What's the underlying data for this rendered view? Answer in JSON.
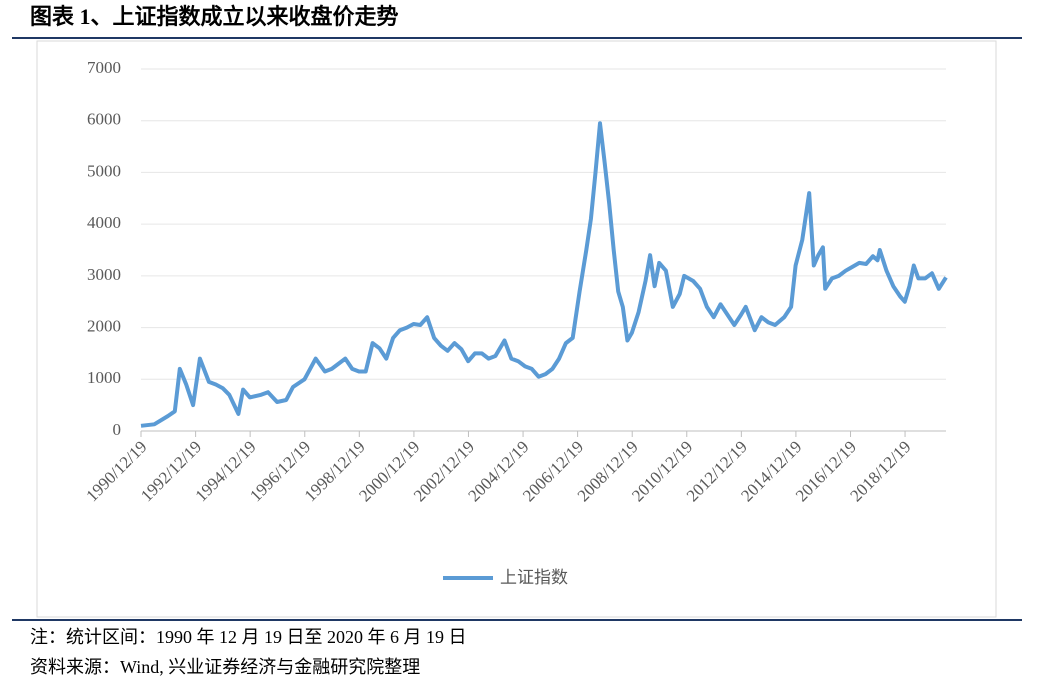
{
  "chart_data": {
    "type": "line",
    "title": "图表 1、上证指数成立以来收盘价走势",
    "notes": [
      "注：统计区间：1990 年 12 月 19 日至 2020 年 6 月 19 日",
      "资料来源：Wind, 兴业证券经济与金融研究院整理"
    ],
    "x": [
      "1990/12/19",
      "1991/06",
      "1991/12",
      "1992/03",
      "1992/05/21",
      "1992/08",
      "1992/11",
      "1993/02",
      "1993/06",
      "1993/09",
      "1993/12",
      "1994/03",
      "1994/07",
      "1994/09",
      "1994/12",
      "1995/05",
      "1995/08",
      "1995/12",
      "1996/04",
      "1996/07",
      "1996/12",
      "1997/05",
      "1997/09",
      "1997/12",
      "1998/06",
      "1998/09",
      "1998/12",
      "1999/03",
      "1999/06",
      "1999/09",
      "1999/12",
      "2000/03",
      "2000/06",
      "2000/09",
      "2000/12",
      "2001/03",
      "2001/06",
      "2001/09",
      "2001/12",
      "2002/03",
      "2002/06",
      "2002/09",
      "2002/12",
      "2003/03",
      "2003/06",
      "2003/09",
      "2003/12",
      "2004/04",
      "2004/07",
      "2004/10",
      "2005/01",
      "2005/04",
      "2005/07",
      "2005/10",
      "2006/01",
      "2006/04",
      "2006/07",
      "2006/10",
      "2007/01",
      "2007/04",
      "2007/06",
      "2007/08",
      "2007/10",
      "2007/12",
      "2008/02",
      "2008/04",
      "2008/06",
      "2008/08",
      "2008/10",
      "2008/12",
      "2009/03",
      "2009/06",
      "2009/08",
      "2009/10",
      "2009/12",
      "2010/03",
      "2010/06",
      "2010/09",
      "2010/11",
      "2011/03",
      "2011/06",
      "2011/09",
      "2011/12",
      "2012/03",
      "2012/06",
      "2012/09",
      "2012/12",
      "2013/02",
      "2013/06",
      "2013/09",
      "2013/12",
      "2014/03",
      "2014/07",
      "2014/10",
      "2014/12",
      "2015/03",
      "2015/06",
      "2015/08",
      "2015/10",
      "2015/12",
      "2016/01",
      "2016/04",
      "2016/07",
      "2016/10",
      "2016/12",
      "2017/04",
      "2017/07",
      "2017/10",
      "2017/12",
      "2018/01",
      "2018/04",
      "2018/07",
      "2018/10",
      "2018/12",
      "2019/02",
      "2019/04",
      "2019/06",
      "2019/09",
      "2019/12",
      "2020/03",
      "2020/06/19"
    ],
    "series": [
      {
        "name": "上证指数",
        "color": "#5b9bd5",
        "values": [
          100,
          130,
          290,
          380,
          1200,
          900,
          500,
          1400,
          950,
          900,
          830,
          700,
          330,
          800,
          650,
          700,
          750,
          560,
          600,
          850,
          1000,
          1400,
          1150,
          1200,
          1400,
          1200,
          1150,
          1150,
          1700,
          1600,
          1400,
          1800,
          1950,
          2000,
          2070,
          2050,
          2200,
          1800,
          1650,
          1550,
          1700,
          1580,
          1350,
          1500,
          1500,
          1400,
          1450,
          1750,
          1400,
          1350,
          1250,
          1200,
          1050,
          1100,
          1200,
          1400,
          1700,
          1800,
          2700,
          3500,
          4100,
          5000,
          5950,
          5200,
          4400,
          3500,
          2700,
          2400,
          1750,
          1900,
          2300,
          2900,
          3400,
          2800,
          3250,
          3100,
          2400,
          2650,
          3000,
          2900,
          2750,
          2400,
          2200,
          2450,
          2250,
          2050,
          2250,
          2400,
          1950,
          2200,
          2100,
          2050,
          2200,
          2400,
          3200,
          3700,
          4600,
          3200,
          3400,
          3550,
          2750,
          2950,
          3000,
          3100,
          3150,
          3250,
          3230,
          3380,
          3300,
          3500,
          3100,
          2800,
          2600,
          2500,
          2800,
          3200,
          2950,
          2950,
          3050,
          2750,
          2970
        ]
      }
    ],
    "xlim": [
      "1990/12/19",
      "2020/06/19"
    ],
    "xticks": [
      "1990/12/19",
      "1992/12/19",
      "1994/12/19",
      "1996/12/19",
      "1998/12/19",
      "2000/12/19",
      "2002/12/19",
      "2004/12/19",
      "2006/12/19",
      "2008/12/19",
      "2010/12/19",
      "2012/12/19",
      "2014/12/19",
      "2016/12/19",
      "2018/12/19"
    ],
    "ylim": [
      0,
      7000
    ],
    "yticks": [
      0,
      1000,
      2000,
      3000,
      4000,
      5000,
      6000,
      7000
    ],
    "grid": true,
    "legend": "bottom"
  }
}
